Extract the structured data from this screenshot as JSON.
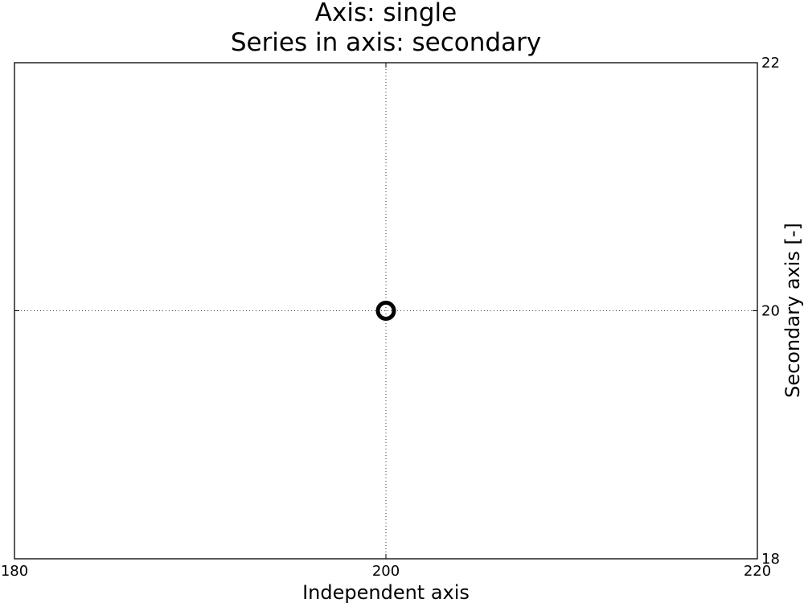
{
  "chart_data": {
    "type": "scatter",
    "title_lines": [
      "Axis: single",
      "Series in axis: secondary"
    ],
    "xlabel": "Independent axis",
    "ylabel": "",
    "y2label": "Secondary axis [-]",
    "xlim": [
      180,
      220
    ],
    "y2lim": [
      18,
      22
    ],
    "xticks": [
      "180",
      "200",
      "220"
    ],
    "y2ticks": [
      "18",
      "20",
      "22"
    ],
    "grid": true,
    "grid_style": "dotted",
    "legend": "none",
    "series": [
      {
        "axis": "secondary",
        "marker": "hollow-circle",
        "color": "#000000",
        "points": [
          {
            "x": 200,
            "y": 20
          }
        ]
      }
    ]
  }
}
